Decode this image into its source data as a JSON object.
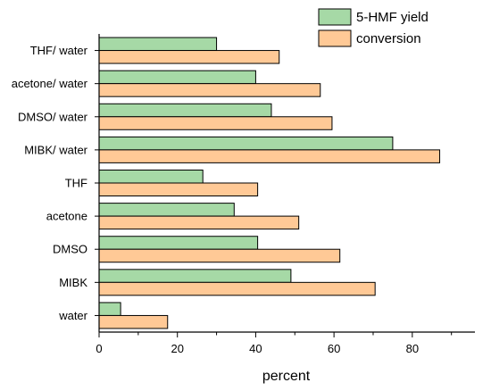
{
  "chart_data": {
    "type": "bar",
    "orientation": "horizontal",
    "categories": [
      "THF/ water",
      "acetone/ water",
      "DMSO/ water",
      "MIBK/ water",
      "THF",
      "acetone",
      "DMSO",
      "MIBK",
      "water"
    ],
    "series": [
      {
        "name": "5-HMF yield",
        "color": "#a6d9a6",
        "values": [
          30,
          40,
          44,
          75,
          26.5,
          34.5,
          40.5,
          49,
          5.5
        ]
      },
      {
        "name": "conversion",
        "color": "#ffc996",
        "values": [
          46,
          56.5,
          59.5,
          87,
          40.5,
          51,
          61.5,
          70.5,
          17.5
        ]
      }
    ],
    "xlabel": "percent",
    "ylabel": "",
    "xlim": [
      0,
      96
    ],
    "x_ticks": [
      0,
      20,
      40,
      60,
      80
    ],
    "grid": false,
    "legend_position": "top-right"
  }
}
